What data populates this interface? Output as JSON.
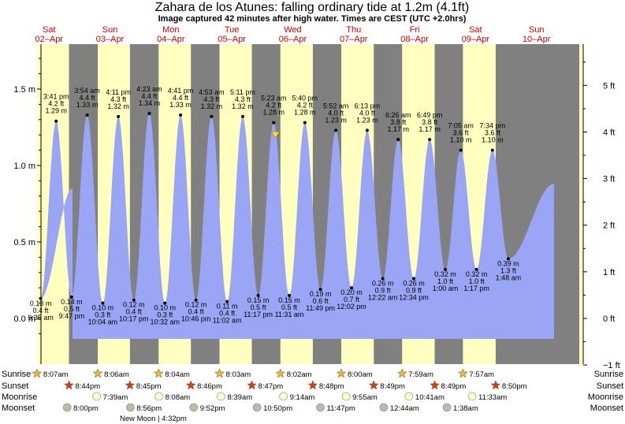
{
  "title": "Zahara de los Atunes: falling  ordinary tide at 1.2m (4.1ft)",
  "subtitle": "Image captured 42 minutes after high water. Times are CEST (UTC +2.0hrs)",
  "colors": {
    "night": "#808080",
    "day": "#ffffc0",
    "tide": "#9aa6f5",
    "day_label": "#cc0000",
    "sun": "#e8b840",
    "sunset": "#d04020",
    "moonrise": "#ffffd0",
    "moonset": "#c0b8a8"
  },
  "chart_data": {
    "type": "area",
    "title": "Zahara de los Atunes: falling  ordinary tide at 1.2m (4.1ft)",
    "subtitle": "Image captured 42 minutes after high water. Times are CEST (UTC +2.0hrs)",
    "y_left": {
      "unit": "m",
      "range": [
        -0.18,
        1.76
      ],
      "ticks": [
        "0.0 m",
        "0.5 m",
        "1.0 m",
        "1.5 m"
      ],
      "tick_values": [
        0,
        0.5,
        1.0,
        1.5
      ]
    },
    "y_right": {
      "unit": "ft",
      "ticks": [
        "−1 ft",
        "0 ft",
        "1 ft",
        "2 ft",
        "3 ft",
        "4 ft",
        "5 ft"
      ],
      "tick_values": [
        -1,
        0,
        1,
        2,
        3,
        4,
        5
      ]
    },
    "days": [
      {
        "name": "Sat",
        "date": "02–Apr"
      },
      {
        "name": "Sun",
        "date": "03–Apr"
      },
      {
        "name": "Mon",
        "date": "04–Apr"
      },
      {
        "name": "Tue",
        "date": "05–Apr"
      },
      {
        "name": "Wed",
        "date": "06–Apr"
      },
      {
        "name": "Thu",
        "date": "07–Apr"
      },
      {
        "name": "Fri",
        "date": "08–Apr"
      },
      {
        "name": "Sat",
        "date": "09–Apr"
      },
      {
        "name": "Sun",
        "date": "10–Apr"
      }
    ],
    "tides": [
      {
        "type": "low",
        "day": 0,
        "time": "9:35 am",
        "m": "0.13 m",
        "ft": "0.4 ft",
        "value": 0.13
      },
      {
        "type": "high",
        "day": 0,
        "time": "3:41 pm",
        "m": "1.29 m",
        "ft": "4.2 ft",
        "value": 1.29
      },
      {
        "type": "low",
        "day": 0,
        "time": "9:47 pm",
        "m": "0.14 m",
        "ft": "0.5 ft",
        "value": 0.14
      },
      {
        "type": "high",
        "day": 1,
        "time": "3:54 am",
        "m": "1.33 m",
        "ft": "4.4 ft",
        "value": 1.33
      },
      {
        "type": "low",
        "day": 1,
        "time": "10:04 am",
        "m": "0.10 m",
        "ft": "0.3 ft",
        "value": 0.1
      },
      {
        "type": "high",
        "day": 1,
        "time": "4:11 pm",
        "m": "1.32 m",
        "ft": "4.3 ft",
        "value": 1.32
      },
      {
        "type": "low",
        "day": 1,
        "time": "10:17 pm",
        "m": "0.12 m",
        "ft": "0.4 ft",
        "value": 0.12
      },
      {
        "type": "high",
        "day": 2,
        "time": "4:23 am",
        "m": "1.34 m",
        "ft": "4.4 ft",
        "value": 1.34
      },
      {
        "type": "low",
        "day": 2,
        "time": "10:32 am",
        "m": "0.10 m",
        "ft": "0.3 ft",
        "value": 0.1
      },
      {
        "type": "high",
        "day": 2,
        "time": "4:41 pm",
        "m": "1.33 m",
        "ft": "4.4 ft",
        "value": 1.33
      },
      {
        "type": "low",
        "day": 2,
        "time": "10:46 pm",
        "m": "0.12 m",
        "ft": "0.4 ft",
        "value": 0.12
      },
      {
        "type": "high",
        "day": 3,
        "time": "4:53 am",
        "m": "1.32 m",
        "ft": "4.3 ft",
        "value": 1.32
      },
      {
        "type": "low",
        "day": 3,
        "time": "11:02 am",
        "m": "0.11 m",
        "ft": "0.4 ft",
        "value": 0.11
      },
      {
        "type": "high",
        "day": 3,
        "time": "5:11 pm",
        "m": "1.32 m",
        "ft": "4.3 ft",
        "value": 1.32
      },
      {
        "type": "low",
        "day": 3,
        "time": "11:17 pm",
        "m": "0.15 m",
        "ft": "0.5 ft",
        "value": 0.15
      },
      {
        "type": "high",
        "day": 4,
        "time": "5:23 am",
        "m": "1.28 m",
        "ft": "4.2 ft",
        "value": 1.28
      },
      {
        "type": "low",
        "day": 4,
        "time": "11:31 am",
        "m": "0.15 m",
        "ft": "0.5 ft",
        "value": 0.15
      },
      {
        "type": "high",
        "day": 4,
        "time": "5:40 pm",
        "m": "1.28 m",
        "ft": "4.2 ft",
        "value": 1.28
      },
      {
        "type": "low",
        "day": 4,
        "time": "11:49 pm",
        "m": "0.19 m",
        "ft": "0.6 ft",
        "value": 0.19
      },
      {
        "type": "high",
        "day": 5,
        "time": "5:52 am",
        "m": "1.23 m",
        "ft": "4.0 ft",
        "value": 1.23
      },
      {
        "type": "low",
        "day": 5,
        "time": "12:02 pm",
        "m": "0.20 m",
        "ft": "0.7 ft",
        "value": 0.2
      },
      {
        "type": "high",
        "day": 5,
        "time": "6:13 pm",
        "m": "1.23 m",
        "ft": "4.0 ft",
        "value": 1.23
      },
      {
        "type": "low",
        "day": 6,
        "time": "12:22 am",
        "m": "0.26 m",
        "ft": "0.9 ft",
        "value": 0.26
      },
      {
        "type": "high",
        "day": 6,
        "time": "6:26 am",
        "m": "1.17 m",
        "ft": "3.8 ft",
        "value": 1.17
      },
      {
        "type": "low",
        "day": 6,
        "time": "12:34 pm",
        "m": "0.26 m",
        "ft": "0.9 ft",
        "value": 0.26
      },
      {
        "type": "high",
        "day": 6,
        "time": "6:49 pm",
        "m": "1.17 m",
        "ft": "3.8 ft",
        "value": 1.17
      },
      {
        "type": "low",
        "day": 7,
        "time": "1:00 am",
        "m": "0.32 m",
        "ft": "1.0 ft",
        "value": 0.32
      },
      {
        "type": "high",
        "day": 7,
        "time": "7:05 am",
        "m": "1.10 m",
        "ft": "3.6 ft",
        "value": 1.1
      },
      {
        "type": "low",
        "day": 7,
        "time": "1:17 pm",
        "m": "0.32 m",
        "ft": "1.0 ft",
        "value": 0.32
      },
      {
        "type": "high",
        "day": 7,
        "time": "7:34 pm",
        "m": "1.10 m",
        "ft": "3.6 ft",
        "value": 1.1
      },
      {
        "type": "low",
        "day": 8,
        "time": "1:48 am",
        "m": "0.39 m",
        "ft": "1.3 ft",
        "value": 0.39
      }
    ],
    "current_marker": {
      "day": 4,
      "time": "6:05 am",
      "value": 1.2,
      "label": "falling  ordinary tide at 1.2m (4.1ft)"
    },
    "astro": {
      "rows": [
        "Sunrise",
        "Sunset",
        "Moonrise",
        "Moonset"
      ],
      "sunrise": [
        {
          "day": 0,
          "time": "8:07am"
        },
        {
          "day": 1,
          "time": "8:06am"
        },
        {
          "day": 2,
          "time": "8:04am"
        },
        {
          "day": 3,
          "time": "8:03am"
        },
        {
          "day": 4,
          "time": "8:02am"
        },
        {
          "day": 5,
          "time": "8:00am"
        },
        {
          "day": 6,
          "time": "7:59am"
        },
        {
          "day": 7,
          "time": "7:57am"
        }
      ],
      "sunset": [
        {
          "day": 0,
          "time": "8:44pm"
        },
        {
          "day": 1,
          "time": "8:45pm"
        },
        {
          "day": 2,
          "time": "8:46pm"
        },
        {
          "day": 3,
          "time": "8:47pm"
        },
        {
          "day": 4,
          "time": "8:48pm"
        },
        {
          "day": 5,
          "time": "8:49pm"
        },
        {
          "day": 6,
          "time": "8:49pm"
        },
        {
          "day": 7,
          "time": "8:50pm"
        }
      ],
      "moonrise": [
        {
          "day": 1,
          "time": "7:39am"
        },
        {
          "day": 2,
          "time": "8:08am"
        },
        {
          "day": 3,
          "time": "8:39am"
        },
        {
          "day": 4,
          "time": "9:14am"
        },
        {
          "day": 5,
          "time": "9:55am"
        },
        {
          "day": 6,
          "time": "10:41am"
        },
        {
          "day": 7,
          "time": "11:33am"
        }
      ],
      "moonset": [
        {
          "day": 0,
          "time": "8:00pm"
        },
        {
          "day": 1,
          "time": "8:56pm"
        },
        {
          "day": 2,
          "time": "9:52pm"
        },
        {
          "day": 3,
          "time": "10:50pm"
        },
        {
          "day": 4,
          "time": "11:47pm"
        },
        {
          "day": 6,
          "time": "12:44am"
        },
        {
          "day": 7,
          "time": "1:38am"
        }
      ],
      "moon_phase": {
        "label": "New Moon",
        "time": "4:32pm"
      }
    }
  }
}
